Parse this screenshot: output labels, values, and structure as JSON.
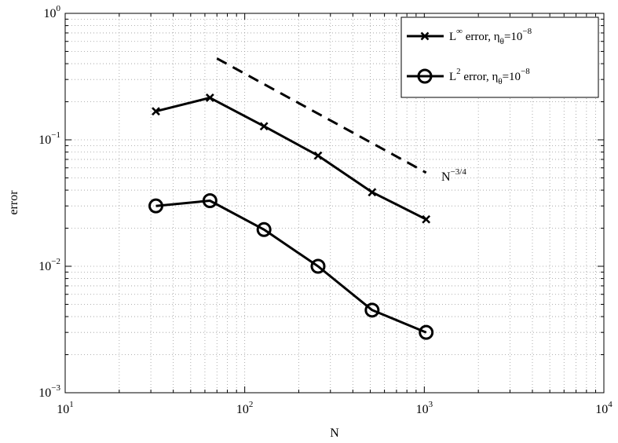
{
  "chart_data": {
    "type": "line",
    "xscale": "log",
    "yscale": "log",
    "xlim": [
      10,
      10000
    ],
    "ylim": [
      0.001,
      1
    ],
    "xlabel": "N",
    "ylabel": "error",
    "grid": true,
    "legend_position": "top-right",
    "x_ticks": [
      {
        "value": 10,
        "base": "10",
        "exp": "1"
      },
      {
        "value": 100,
        "base": "10",
        "exp": "2"
      },
      {
        "value": 1000,
        "base": "10",
        "exp": "3"
      },
      {
        "value": 10000,
        "base": "10",
        "exp": "4"
      }
    ],
    "y_ticks": [
      {
        "value": 0.001,
        "base": "10",
        "exp": "−3"
      },
      {
        "value": 0.01,
        "base": "10",
        "exp": "−2"
      },
      {
        "value": 0.1,
        "base": "10",
        "exp": "−1"
      },
      {
        "value": 1,
        "base": "10",
        "exp": "0"
      }
    ],
    "series": [
      {
        "name": "L∞ error, ηθ=10−8",
        "legend": {
          "base": "L",
          "sup": "∞",
          "mid": " error,  η",
          "sub": "θ",
          "eq": "=10",
          "exp": "−8"
        },
        "marker": "x",
        "color": "#000000",
        "x": [
          32,
          64,
          128,
          256,
          512,
          1024
        ],
        "y": [
          0.168,
          0.215,
          0.128,
          0.075,
          0.0385,
          0.0235
        ]
      },
      {
        "name": "L2 error, ηθ=10−8",
        "legend": {
          "base": "L",
          "sup": "2",
          "mid": " error,  η",
          "sub": "θ",
          "eq": "=10",
          "exp": "−8"
        },
        "marker": "o",
        "color": "#000000",
        "x": [
          32,
          64,
          128,
          256,
          512,
          1024
        ],
        "y": [
          0.03,
          0.033,
          0.0195,
          0.01,
          0.0045,
          0.003
        ]
      }
    ],
    "reference_line": {
      "style": "dashed",
      "x": [
        70,
        1024
      ],
      "y": [
        0.44,
        0.055
      ],
      "label_base": "N",
      "label_exp": "−3/4"
    }
  }
}
